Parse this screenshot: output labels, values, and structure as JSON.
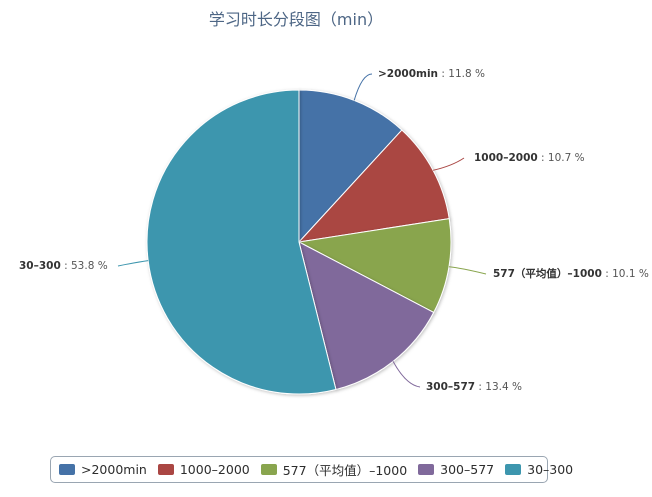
{
  "chart_data": {
    "type": "pie",
    "title": "学习时长分段图（min）",
    "slices": [
      {
        "name": ">2000min",
        "label": ">2000min",
        "value": 11.8,
        "value_text": " : 11.8 %",
        "color": "#4572a7"
      },
      {
        "name": "1000–2000",
        "label": "1000–2000",
        "value": 10.7,
        "value_text": " : 10.7 %",
        "color": "#aa4643"
      },
      {
        "name": "577（平均值）–1000",
        "label": "577（平均值）–1000",
        "value": 10.1,
        "value_text": " : 10.1 %",
        "color": "#89a54e"
      },
      {
        "name": "300–577",
        "label": "300–577",
        "value": 13.4,
        "value_text": " : 13.4 %",
        "color": "#80699b"
      },
      {
        "name": "30–300",
        "label": "30–300",
        "value": 53.8,
        "value_text": " : 53.8 %",
        "color": "#3d96ae"
      }
    ],
    "legend_position": "bottom"
  },
  "legend": {
    "items": [
      ">2000min",
      "1000–2000",
      "577（平均值）–1000",
      "300–577",
      "30–300"
    ]
  }
}
